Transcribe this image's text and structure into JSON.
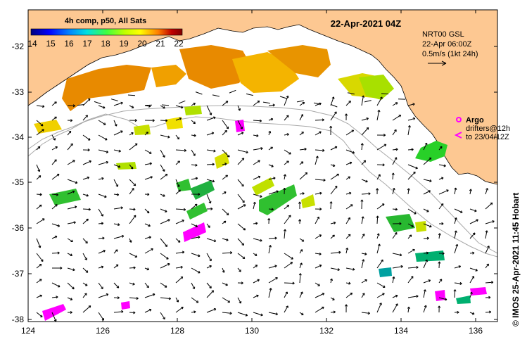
{
  "colorbar": {
    "title": "4h comp, p50, All Sats",
    "ticks": [
      "14",
      "15",
      "16",
      "17",
      "18",
      "19",
      "20",
      "21",
      "22"
    ],
    "colors": [
      "#00007f",
      "#0000ff",
      "#0080ff",
      "#00ffff",
      "#40ff40",
      "#c0ff00",
      "#ffff00",
      "#ff8000",
      "#c00000",
      "#7f0000"
    ]
  },
  "header": {
    "datetime": "22-Apr-2021 04Z"
  },
  "current_info": {
    "line1": "NRT00 GSL",
    "line2": "22-Apr 06:00Z",
    "line3": "0.5m/s (1kt 24h)"
  },
  "legend": {
    "argo": "Argo",
    "drifters_line1": "drifters@12h",
    "drifters_line2": "to 23/04/12Z"
  },
  "credit": "© IMOS 25-Apr-2021 11:45 Hobart",
  "axes": {
    "x_ticks": [
      "124",
      "126",
      "128",
      "130",
      "132",
      "134",
      "136"
    ],
    "y_ticks": [
      "-32",
      "-33",
      "-34",
      "-35",
      "-36",
      "-37",
      "-38"
    ],
    "x_range": [
      124,
      136.6
    ],
    "y_range": [
      -38.15,
      -31.45
    ]
  },
  "colors": {
    "land": "#fdc892",
    "shelf_line": "#a8a8a8",
    "argo": "#ff00ff"
  }
}
